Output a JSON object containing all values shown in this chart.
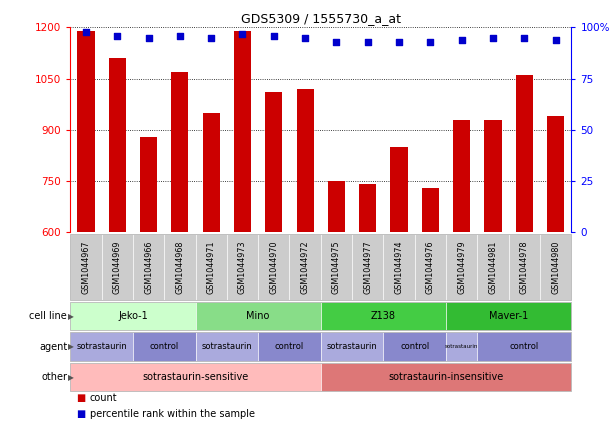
{
  "title": "GDS5309 / 1555730_a_at",
  "samples": [
    "GSM1044967",
    "GSM1044969",
    "GSM1044966",
    "GSM1044968",
    "GSM1044971",
    "GSM1044973",
    "GSM1044970",
    "GSM1044972",
    "GSM1044975",
    "GSM1044977",
    "GSM1044974",
    "GSM1044976",
    "GSM1044979",
    "GSM1044981",
    "GSM1044978",
    "GSM1044980"
  ],
  "counts": [
    1190,
    1110,
    880,
    1070,
    950,
    1190,
    1010,
    1020,
    750,
    740,
    850,
    730,
    930,
    930,
    1060,
    940
  ],
  "percentiles": [
    98,
    96,
    95,
    96,
    95,
    97,
    96,
    95,
    93,
    93,
    93,
    93,
    94,
    95,
    95,
    94
  ],
  "bar_color": "#cc0000",
  "dot_color": "#0000cc",
  "ylim_left": [
    600,
    1200
  ],
  "ylim_right": [
    0,
    100
  ],
  "yticks_left": [
    600,
    750,
    900,
    1050,
    1200
  ],
  "yticks_right": [
    0,
    25,
    50,
    75,
    100
  ],
  "cell_line_row": {
    "label": "cell line",
    "groups": [
      {
        "name": "Jeko-1",
        "start": 0,
        "end": 4,
        "color": "#ccffcc"
      },
      {
        "name": "Mino",
        "start": 4,
        "end": 8,
        "color": "#88dd88"
      },
      {
        "name": "Z138",
        "start": 8,
        "end": 12,
        "color": "#44cc44"
      },
      {
        "name": "Maver-1",
        "start": 12,
        "end": 16,
        "color": "#33bb33"
      }
    ]
  },
  "agent_row": {
    "label": "agent",
    "groups": [
      {
        "name": "sotrastaurin",
        "start": 0,
        "end": 2,
        "color": "#aaaadd"
      },
      {
        "name": "control",
        "start": 2,
        "end": 4,
        "color": "#8888cc"
      },
      {
        "name": "sotrastaurin",
        "start": 4,
        "end": 6,
        "color": "#aaaadd"
      },
      {
        "name": "control",
        "start": 6,
        "end": 8,
        "color": "#8888cc"
      },
      {
        "name": "sotrastaurin",
        "start": 8,
        "end": 10,
        "color": "#aaaadd"
      },
      {
        "name": "control",
        "start": 10,
        "end": 12,
        "color": "#8888cc"
      },
      {
        "name": "sotrastaurin",
        "start": 12,
        "end": 13,
        "color": "#aaaadd"
      },
      {
        "name": "control",
        "start": 13,
        "end": 16,
        "color": "#8888cc"
      }
    ]
  },
  "other_row": {
    "label": "other",
    "groups": [
      {
        "name": "sotrastaurin-sensitive",
        "start": 0,
        "end": 8,
        "color": "#ffbbbb"
      },
      {
        "name": "sotrastaurin-insensitive",
        "start": 8,
        "end": 16,
        "color": "#dd7777"
      }
    ]
  },
  "legend_count_color": "#cc0000",
  "legend_dot_color": "#0000cc",
  "sample_bg_color": "#cccccc",
  "row_border_color": "#aaaaaa"
}
